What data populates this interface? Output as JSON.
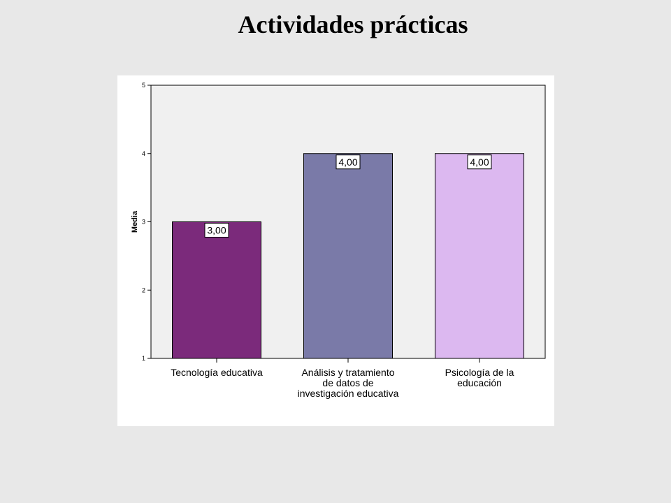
{
  "slide": {
    "title": "Actividades prácticas"
  },
  "chart_data": {
    "type": "bar",
    "title": "Actividades prácticas",
    "xlabel": "",
    "ylabel": "Media",
    "ylim": [
      1,
      5
    ],
    "yticks": [
      "1",
      "2",
      "3",
      "4",
      "5"
    ],
    "grid": false,
    "categories": [
      [
        "Tecnología educativa"
      ],
      [
        "Análisis y tratamiento",
        "de datos de",
        "investigación educativa"
      ],
      [
        "Psicología de la",
        "educación"
      ]
    ],
    "values": [
      3.0,
      4.0,
      4.0
    ],
    "data_labels": [
      "3,00",
      "4,00",
      "4,00"
    ],
    "colors": [
      "#7b2a7b",
      "#7a7aa8",
      "#dcb8f0"
    ],
    "plot_background": "#f0f0f0"
  }
}
